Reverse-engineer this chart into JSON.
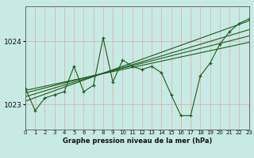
{
  "title": "Graphe pression niveau de la mer (hPa)",
  "background_color": "#c8eae4",
  "grid_color": "#b0d8d0",
  "line_color": "#1a5c1a",
  "xlim": [
    0,
    23
  ],
  "ylim": [
    1022.6,
    1024.55
  ],
  "yticks": [
    1023,
    1024
  ],
  "xticks": [
    0,
    1,
    2,
    3,
    4,
    5,
    6,
    7,
    8,
    9,
    10,
    11,
    12,
    13,
    14,
    15,
    16,
    17,
    18,
    19,
    20,
    21,
    22,
    23
  ],
  "main_data": [
    1023.25,
    1022.9,
    1023.1,
    1023.15,
    1023.2,
    1023.6,
    1023.2,
    1023.3,
    1024.05,
    1023.35,
    1023.7,
    1023.6,
    1023.55,
    1023.6,
    1023.5,
    1023.15,
    1022.82,
    1022.82,
    1023.45,
    1023.65,
    1023.95,
    1024.15,
    1024.28,
    1024.35
  ],
  "trend_lines": [
    [
      1023.05,
      1024.32
    ],
    [
      1023.12,
      1024.18
    ],
    [
      1023.18,
      1024.08
    ],
    [
      1023.22,
      1023.98
    ]
  ]
}
